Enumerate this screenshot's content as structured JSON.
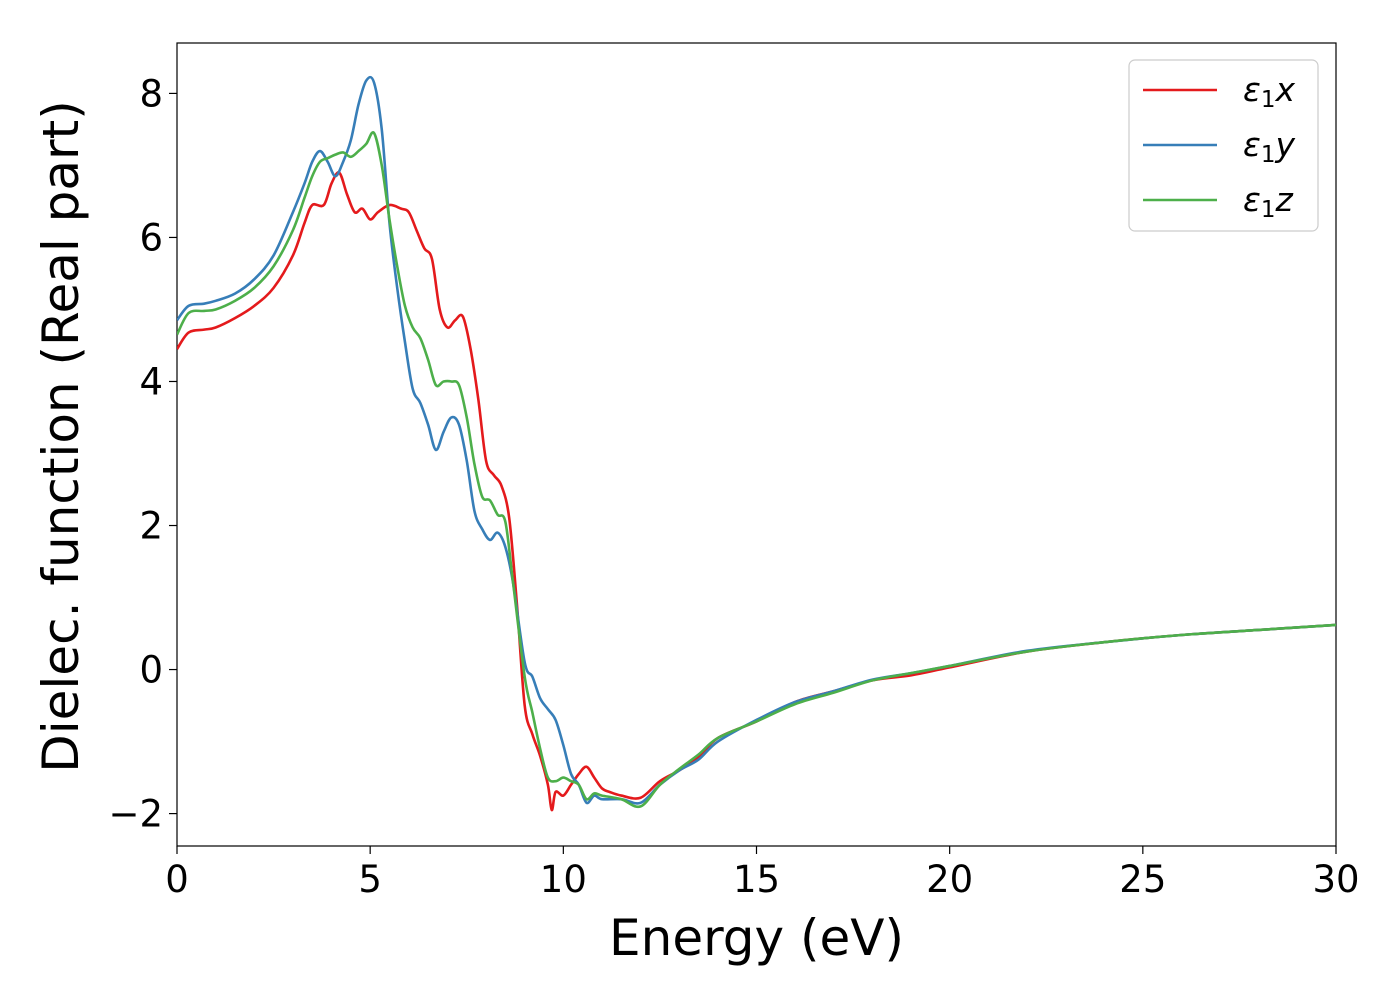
{
  "chart_data": {
    "type": "line",
    "title": "",
    "xlabel": "Energy (eV)",
    "ylabel": "Dielec. function (Real part)",
    "xlim": [
      0,
      30
    ],
    "ylim": [
      -2.45,
      8.7
    ],
    "xticks": [
      0,
      5,
      10,
      15,
      20,
      25,
      30
    ],
    "xtick_labels": [
      "0",
      "5",
      "10",
      "15",
      "20",
      "25",
      "30"
    ],
    "yticks": [
      -2,
      0,
      2,
      4,
      6,
      8
    ],
    "ytick_labels": [
      "−2",
      "0",
      "2",
      "4",
      "6",
      "8"
    ],
    "grid": false,
    "legend_position": "top-right",
    "series": [
      {
        "name": "ε₁x",
        "legend_base": "ε",
        "legend_sub": "1",
        "legend_tail": "x",
        "color": "#e41a1c",
        "x": [
          0,
          0.3,
          0.7,
          1.0,
          1.5,
          2.0,
          2.5,
          3.0,
          3.3,
          3.5,
          3.8,
          4.0,
          4.2,
          4.4,
          4.6,
          4.8,
          5.0,
          5.2,
          5.5,
          5.8,
          6.0,
          6.2,
          6.4,
          6.6,
          6.8,
          7.0,
          7.2,
          7.4,
          7.6,
          7.8,
          8.0,
          8.2,
          8.4,
          8.6,
          8.8,
          9.0,
          9.2,
          9.4,
          9.6,
          9.7,
          9.8,
          10.0,
          10.2,
          10.4,
          10.6,
          10.8,
          11.0,
          11.2,
          11.5,
          12.0,
          12.5,
          13.0,
          13.5,
          14.0,
          15.0,
          16.0,
          17.0,
          18.0,
          19.0,
          20.0,
          22.0,
          24.0,
          26.0,
          28.0,
          30.0
        ],
        "y": [
          4.45,
          4.68,
          4.72,
          4.75,
          4.88,
          5.05,
          5.3,
          5.75,
          6.2,
          6.45,
          6.45,
          6.75,
          6.9,
          6.6,
          6.35,
          6.4,
          6.25,
          6.35,
          6.45,
          6.4,
          6.35,
          6.1,
          5.85,
          5.7,
          5.0,
          4.75,
          4.85,
          4.9,
          4.45,
          3.75,
          2.9,
          2.7,
          2.55,
          2.1,
          0.9,
          -0.5,
          -0.9,
          -1.2,
          -1.6,
          -1.95,
          -1.7,
          -1.75,
          -1.6,
          -1.45,
          -1.35,
          -1.5,
          -1.65,
          -1.7,
          -1.75,
          -1.78,
          -1.55,
          -1.4,
          -1.22,
          -0.95,
          -0.72,
          -0.45,
          -0.3,
          -0.15,
          -0.08,
          0.03,
          0.25,
          0.38,
          0.48,
          0.55,
          0.62
        ]
      },
      {
        "name": "ε₁y",
        "legend_base": "ε",
        "legend_sub": "1",
        "legend_tail": "y",
        "color": "#377eb8",
        "x": [
          0,
          0.3,
          0.7,
          1.0,
          1.5,
          2.0,
          2.5,
          3.0,
          3.3,
          3.5,
          3.7,
          3.9,
          4.1,
          4.3,
          4.5,
          4.7,
          4.9,
          5.1,
          5.3,
          5.5,
          5.7,
          5.9,
          6.1,
          6.3,
          6.5,
          6.7,
          6.9,
          7.1,
          7.3,
          7.5,
          7.7,
          7.9,
          8.1,
          8.3,
          8.5,
          8.7,
          9.0,
          9.2,
          9.4,
          9.6,
          9.8,
          10.0,
          10.2,
          10.4,
          10.6,
          10.8,
          11.0,
          11.5,
          12.0,
          12.5,
          13.0,
          13.5,
          14.0,
          15.0,
          16.0,
          17.0,
          18.0,
          19.0,
          20.0,
          22.0,
          24.0,
          26.0,
          28.0,
          30.0
        ],
        "y": [
          4.85,
          5.05,
          5.08,
          5.12,
          5.22,
          5.42,
          5.75,
          6.35,
          6.75,
          7.05,
          7.2,
          7.05,
          6.85,
          7.05,
          7.35,
          7.85,
          8.18,
          8.15,
          7.5,
          6.2,
          5.3,
          4.55,
          3.9,
          3.7,
          3.4,
          3.05,
          3.3,
          3.5,
          3.4,
          2.9,
          2.2,
          1.95,
          1.8,
          1.9,
          1.7,
          1.2,
          0.1,
          -0.1,
          -0.4,
          -0.55,
          -0.7,
          -1.05,
          -1.45,
          -1.6,
          -1.85,
          -1.75,
          -1.8,
          -1.8,
          -1.85,
          -1.6,
          -1.4,
          -1.25,
          -1.0,
          -0.7,
          -0.45,
          -0.3,
          -0.14,
          -0.05,
          0.05,
          0.26,
          0.38,
          0.48,
          0.55,
          0.62
        ]
      },
      {
        "name": "ε₁z",
        "legend_base": "ε",
        "legend_sub": "1",
        "legend_tail": "z",
        "color": "#4daf4a",
        "x": [
          0,
          0.3,
          0.7,
          1.0,
          1.5,
          2.0,
          2.5,
          3.0,
          3.3,
          3.5,
          3.7,
          3.9,
          4.1,
          4.3,
          4.5,
          4.7,
          4.9,
          5.1,
          5.3,
          5.5,
          5.7,
          5.9,
          6.1,
          6.3,
          6.5,
          6.7,
          6.9,
          7.1,
          7.3,
          7.5,
          7.7,
          7.9,
          8.1,
          8.3,
          8.5,
          8.7,
          9.0,
          9.2,
          9.4,
          9.6,
          9.8,
          10.0,
          10.2,
          10.4,
          10.6,
          10.8,
          11.0,
          11.5,
          12.0,
          12.5,
          13.0,
          13.5,
          14.0,
          15.0,
          16.0,
          17.0,
          18.0,
          19.0,
          20.0,
          22.0,
          24.0,
          26.0,
          28.0,
          30.0
        ],
        "y": [
          4.65,
          4.95,
          4.98,
          5.0,
          5.12,
          5.3,
          5.6,
          6.1,
          6.55,
          6.85,
          7.05,
          7.1,
          7.15,
          7.18,
          7.12,
          7.2,
          7.3,
          7.45,
          7.0,
          6.25,
          5.6,
          5.05,
          4.75,
          4.6,
          4.3,
          3.95,
          4.0,
          4.0,
          3.95,
          3.5,
          2.85,
          2.4,
          2.35,
          2.15,
          2.05,
          1.2,
          -0.1,
          -0.6,
          -1.1,
          -1.5,
          -1.55,
          -1.5,
          -1.55,
          -1.6,
          -1.8,
          -1.72,
          -1.75,
          -1.8,
          -1.9,
          -1.6,
          -1.38,
          -1.18,
          -0.95,
          -0.72,
          -0.48,
          -0.32,
          -0.15,
          -0.05,
          0.05,
          0.25,
          0.38,
          0.48,
          0.55,
          0.62
        ]
      }
    ]
  }
}
